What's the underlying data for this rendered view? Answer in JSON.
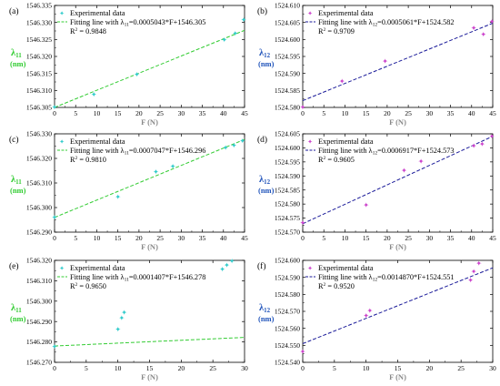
{
  "chart_data": [
    {
      "type": "scatter",
      "panel_label": "(a)",
      "ylabel": "λ11",
      "ylabel_main": "λ",
      "ylabel_sub": "11",
      "yunit": "(nm)",
      "xlabel": "F (N)",
      "xlim": [
        0,
        45
      ],
      "ylim": [
        1546.305,
        1546.335
      ],
      "xticks": [
        0,
        5,
        10,
        15,
        20,
        25,
        30,
        35,
        40,
        45
      ],
      "xtick_labels": [
        "0",
        "5",
        "10",
        "15",
        "20",
        "25",
        "30",
        "35",
        "40",
        "45"
      ],
      "yticks": [
        1546.305,
        1546.31,
        1546.315,
        1546.32,
        1546.325,
        1546.33,
        1546.335
      ],
      "ytick_labels": [
        "1546.305",
        "1546.310",
        "1546.315",
        "1546.320",
        "1546.325",
        "1546.330",
        "1546.335"
      ],
      "marker": "✦",
      "marker_color": "#33cccc",
      "line_color": "#33cc33",
      "label_color": "#33cc33",
      "legend": {
        "marker_label": "Experimental data",
        "fit_prefix": "Fitting line with λ",
        "fit_sub": "11",
        "fit_suffix": "=0.0005043*F+1546.305",
        "r2_prefix": "R",
        "r2_sup": "2",
        "r2_suffix": " = 0.9848"
      },
      "fit": {
        "slope": 0.0005043,
        "intercept": 1546.305
      },
      "points": [
        {
          "x": 0,
          "y": 1546.3052
        },
        {
          "x": 9.3,
          "y": 1546.3089
        },
        {
          "x": 19.5,
          "y": 1546.3148
        },
        {
          "x": 40.2,
          "y": 1546.3249
        },
        {
          "x": 42.8,
          "y": 1546.3268
        },
        {
          "x": 44.8,
          "y": 1546.3308
        }
      ]
    },
    {
      "type": "scatter",
      "panel_label": "(b)",
      "ylabel": "λ12",
      "ylabel_main": "λ",
      "ylabel_sub": "12",
      "yunit": "(nm)",
      "xlabel": "F (N)",
      "xlim": [
        0,
        45
      ],
      "ylim": [
        1524.58,
        1524.61
      ],
      "xticks": [
        0,
        5,
        10,
        15,
        20,
        25,
        30,
        35,
        40,
        45
      ],
      "xtick_labels": [
        "0",
        "5",
        "10",
        "15",
        "20",
        "25",
        "30",
        "35",
        "40",
        "45"
      ],
      "yticks": [
        1524.58,
        1524.585,
        1524.59,
        1524.595,
        1524.6,
        1524.605,
        1524.61
      ],
      "ytick_labels": [
        "1524.580",
        "1524.585",
        "1524.590",
        "1524.595",
        "1524.600",
        "1524.605",
        "1524.610"
      ],
      "marker": "✦",
      "marker_color": "#cc44cc",
      "line_color": "#1a1a99",
      "label_color": "#2255bb",
      "legend": {
        "marker_label": "Experimental data",
        "fit_prefix": "Fitting line with λ",
        "fit_sub": "12",
        "fit_suffix": "=0.0005061*F+1524.582",
        "r2_prefix": "R",
        "r2_sup": "2",
        "r2_suffix": " = 0.9709"
      },
      "fit": {
        "slope": 0.0005061,
        "intercept": 1524.582
      },
      "points": [
        {
          "x": 0,
          "y": 1524.5801
        },
        {
          "x": 9.3,
          "y": 1524.5878
        },
        {
          "x": 19.5,
          "y": 1524.5937
        },
        {
          "x": 40.5,
          "y": 1524.6035
        },
        {
          "x": 42.8,
          "y": 1524.6015
        },
        {
          "x": 44.8,
          "y": 1524.6053
        }
      ]
    },
    {
      "type": "scatter",
      "panel_label": "(c)",
      "ylabel": "λ11",
      "ylabel_main": "λ",
      "ylabel_sub": "11",
      "yunit": "(nm)",
      "xlabel": "F (N)",
      "xlim": [
        0,
        45
      ],
      "ylim": [
        1546.29,
        1546.33
      ],
      "xticks": [
        0,
        5,
        10,
        15,
        20,
        25,
        30,
        35,
        40,
        45
      ],
      "xtick_labels": [
        "0",
        "5",
        "10",
        "15",
        "20",
        "25",
        "30",
        "35",
        "40",
        "45"
      ],
      "yticks": [
        1546.29,
        1546.3,
        1546.31,
        1546.32,
        1546.33
      ],
      "ytick_labels": [
        "1546.290",
        "1546.300",
        "1546.310",
        "1546.320",
        "1546.330"
      ],
      "marker": "✦",
      "marker_color": "#33cccc",
      "line_color": "#33cc33",
      "label_color": "#33cc33",
      "legend": {
        "marker_label": "Experimental data",
        "fit_prefix": "Fitting line with λ",
        "fit_sub": "11",
        "fit_suffix": "=0.0007047*F+1546.296",
        "r2_prefix": "R",
        "r2_sup": "2",
        "r2_suffix": " = 0.9810"
      },
      "fit": {
        "slope": 0.0007047,
        "intercept": 1546.296
      },
      "points": [
        {
          "x": 0,
          "y": 1546.2962
        },
        {
          "x": 15,
          "y": 1546.3045
        },
        {
          "x": 24,
          "y": 1546.3147
        },
        {
          "x": 28,
          "y": 1546.3168
        },
        {
          "x": 40.5,
          "y": 1546.3245
        },
        {
          "x": 42.5,
          "y": 1546.3253
        },
        {
          "x": 44.5,
          "y": 1546.3273
        }
      ]
    },
    {
      "type": "scatter",
      "panel_label": "(d)",
      "ylabel": "λ12",
      "ylabel_main": "λ",
      "ylabel_sub": "12",
      "yunit": "(nm)",
      "xlabel": "F (N)",
      "xlim": [
        0,
        45
      ],
      "ylim": [
        1524.57,
        1524.605
      ],
      "xticks": [
        0,
        5,
        10,
        15,
        20,
        25,
        30,
        35,
        40,
        45
      ],
      "xtick_labels": [
        "0",
        "5",
        "10",
        "15",
        "20",
        "25",
        "30",
        "35",
        "40",
        "45"
      ],
      "yticks": [
        1524.57,
        1524.575,
        1524.58,
        1524.585,
        1524.59,
        1524.595,
        1524.6,
        1524.605
      ],
      "ytick_labels": [
        "1524.570",
        "1524.575",
        "1524.580",
        "1524.585",
        "1524.590",
        "1524.595",
        "1524.600",
        "1524.605"
      ],
      "marker": "✦",
      "marker_color": "#cc44cc",
      "line_color": "#1a1a99",
      "label_color": "#2255bb",
      "legend": {
        "marker_label": "Experimental data",
        "fit_prefix": "Fitting line with λ",
        "fit_sub": "12",
        "fit_suffix": "=0.0006917*F+1524.573",
        "r2_prefix": "R",
        "r2_sup": "2",
        "r2_suffix": " = 0.9605"
      },
      "fit": {
        "slope": 0.0006917,
        "intercept": 1524.573
      },
      "points": [
        {
          "x": 0,
          "y": 1524.5734
        },
        {
          "x": 15,
          "y": 1524.5798
        },
        {
          "x": 24,
          "y": 1524.5921
        },
        {
          "x": 28,
          "y": 1524.5952
        },
        {
          "x": 40.5,
          "y": 1524.6008
        },
        {
          "x": 42.5,
          "y": 1524.6015
        },
        {
          "x": 44.8,
          "y": 1524.6042
        }
      ]
    },
    {
      "type": "scatter",
      "panel_label": "(e)",
      "ylabel": "λ11",
      "ylabel_main": "λ",
      "ylabel_sub": "11",
      "yunit": "(nm)",
      "xlabel": "F (N)",
      "xlim": [
        0,
        30
      ],
      "ylim": [
        1546.27,
        1546.32
      ],
      "xticks": [
        0,
        5,
        10,
        15,
        20,
        25,
        30
      ],
      "xtick_labels": [
        "0",
        "5",
        "10",
        "15",
        "20",
        "25",
        "30"
      ],
      "yticks": [
        1546.27,
        1546.28,
        1546.29,
        1546.3,
        1546.31,
        1546.32
      ],
      "ytick_labels": [
        "1546.270",
        "1546.280",
        "1546.290",
        "1546.300",
        "1546.310",
        "1546.320"
      ],
      "marker": "✦",
      "marker_color": "#33cccc",
      "line_color": "#33cc33",
      "label_color": "#33cc33",
      "legend": {
        "marker_label": "Experimental data",
        "fit_prefix": "Fitting line with λ",
        "fit_sub": "11",
        "fit_suffix": "=0.0001407*F+1546.278",
        "r2_prefix": "R",
        "r2_sup": "2",
        "r2_suffix": " = 0.9650"
      },
      "fit": {
        "slope": 0.0001407,
        "intercept": 1546.278
      },
      "points": [
        {
          "x": 0,
          "y": 1546.2778
        },
        {
          "x": 10,
          "y": 1546.2862
        },
        {
          "x": 10.6,
          "y": 1546.2918
        },
        {
          "x": 11,
          "y": 1546.2945
        },
        {
          "x": 26.5,
          "y": 1546.3158
        },
        {
          "x": 27.2,
          "y": 1546.3178
        },
        {
          "x": 28,
          "y": 1546.3198
        }
      ]
    },
    {
      "type": "scatter",
      "panel_label": "(f)",
      "ylabel": "λ12",
      "ylabel_main": "λ",
      "ylabel_sub": "12",
      "yunit": "(nm)",
      "xlabel": "F (N)",
      "xlim": [
        0,
        30
      ],
      "ylim": [
        1524.54,
        1524.6
      ],
      "xticks": [
        0,
        5,
        10,
        15,
        20,
        25,
        30
      ],
      "xtick_labels": [
        "0",
        "5",
        "10",
        "15",
        "20",
        "25",
        "30"
      ],
      "yticks": [
        1524.54,
        1524.55,
        1524.56,
        1524.57,
        1524.58,
        1524.59,
        1524.6
      ],
      "ytick_labels": [
        "1524.540",
        "1524.550",
        "1524.560",
        "1524.570",
        "1524.580",
        "1524.590",
        "1524.600"
      ],
      "marker": "✦",
      "marker_color": "#cc44cc",
      "line_color": "#1a1a99",
      "label_color": "#2255bb",
      "legend": {
        "marker_label": "Experimental data",
        "fit_prefix": "Fitting line with λ",
        "fit_sub": "12",
        "fit_suffix": "=0.0014870*F+1524.551",
        "r2_prefix": "R",
        "r2_sup": "2",
        "r2_suffix": " = 0.9520"
      },
      "fit": {
        "slope": 0.001487,
        "intercept": 1524.551
      },
      "points": [
        {
          "x": 0,
          "y": 1524.5465
        },
        {
          "x": 10,
          "y": 1524.5675
        },
        {
          "x": 10.6,
          "y": 1524.5705
        },
        {
          "x": 26.5,
          "y": 1524.5885
        },
        {
          "x": 27,
          "y": 1524.5935
        },
        {
          "x": 27.8,
          "y": 1524.5985
        }
      ]
    }
  ]
}
